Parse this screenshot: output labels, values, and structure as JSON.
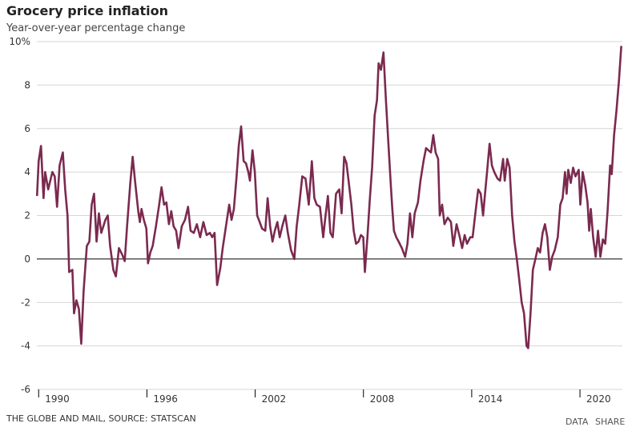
{
  "chart_data": {
    "type": "line",
    "title": "Grocery price inflation",
    "subtitle": "Year-over-year percentage change",
    "source": "THE GLOBE AND MAIL, SOURCE: STATSCAN",
    "buttons": [
      "DATA",
      "SHARE"
    ],
    "x": [
      1989.91,
      1990.0,
      1990.13,
      1990.27,
      1990.36,
      1990.53,
      1990.76,
      1990.89,
      1991.02,
      1991.16,
      1991.34,
      1991.47,
      1991.6,
      1991.69,
      1991.87,
      1991.96,
      1992.09,
      1992.23,
      1992.36,
      1992.49,
      1992.67,
      1992.81,
      1992.94,
      1993.07,
      1993.21,
      1993.34,
      1993.47,
      1993.7,
      1993.83,
      1993.96,
      1994.14,
      1994.28,
      1994.45,
      1994.63,
      1994.77,
      1994.9,
      1995.08,
      1995.21,
      1995.34,
      1995.52,
      1995.61,
      1995.7,
      1995.83,
      1995.97,
      1996.06,
      1996.19,
      1996.32,
      1996.5,
      1996.68,
      1996.81,
      1996.95,
      1997.08,
      1997.22,
      1997.35,
      1997.48,
      1997.62,
      1997.75,
      1997.93,
      1998.11,
      1998.28,
      1998.42,
      1998.6,
      1998.77,
      1998.95,
      1999.13,
      1999.31,
      1999.49,
      1999.62,
      1999.75,
      1999.89,
      2000.07,
      2000.2,
      2000.38,
      2000.56,
      2000.69,
      2000.82,
      2000.96,
      2001.09,
      2001.22,
      2001.36,
      2001.49,
      2001.62,
      2001.71,
      2001.85,
      2001.98,
      2002.11,
      2002.25,
      2002.38,
      2002.56,
      2002.69,
      2002.83,
      2002.96,
      2003.09,
      2003.23,
      2003.36,
      2003.5,
      2003.67,
      2003.81,
      2003.99,
      2004.17,
      2004.3,
      2004.43,
      2004.61,
      2004.79,
      2004.97,
      2005.14,
      2005.28,
      2005.41,
      2005.59,
      2005.77,
      2005.9,
      2006.03,
      2006.17,
      2006.3,
      2006.48,
      2006.66,
      2006.79,
      2006.93,
      2007.06,
      2007.19,
      2007.33,
      2007.46,
      2007.59,
      2007.73,
      2007.86,
      2007.99,
      2008.08,
      2008.22,
      2008.35,
      2008.48,
      2008.62,
      2008.75,
      2008.84,
      2008.97,
      2009.11,
      2009.24,
      2009.37,
      2009.51,
      2009.6,
      2009.69,
      2009.82,
      2009.95,
      2010.13,
      2010.31,
      2010.44,
      2010.58,
      2010.71,
      2010.84,
      2011.02,
      2011.16,
      2011.33,
      2011.47,
      2011.6,
      2011.74,
      2011.87,
      2012.0,
      2012.14,
      2012.23,
      2012.36,
      2012.49,
      2012.67,
      2012.85,
      2012.98,
      2013.16,
      2013.34,
      2013.47,
      2013.61,
      2013.74,
      2013.92,
      2014.05,
      2014.23,
      2014.36,
      2014.5,
      2014.63,
      2014.76,
      2014.85,
      2014.99,
      2015.12,
      2015.25,
      2015.43,
      2015.57,
      2015.74,
      2015.83,
      2015.97,
      2016.1,
      2016.24,
      2016.37,
      2016.5,
      2016.64,
      2016.77,
      2016.9,
      2017.04,
      2017.13,
      2017.26,
      2017.39,
      2017.53,
      2017.66,
      2017.79,
      2017.93,
      2018.06,
      2018.19,
      2018.33,
      2018.46,
      2018.6,
      2018.77,
      2018.91,
      2019.04,
      2019.17,
      2019.26,
      2019.35,
      2019.49,
      2019.62,
      2019.75,
      2019.93,
      2020.02,
      2020.15,
      2020.29,
      2020.42,
      2020.51,
      2020.6,
      2020.73,
      2020.87,
      2021.0,
      2021.13,
      2021.27,
      2021.4,
      2021.53,
      2021.67,
      2021.76,
      2021.89,
      2022.02,
      2022.16,
      2022.29
    ],
    "series": [
      {
        "name": "Grocery price inflation",
        "color": "#7b2a4f",
        "values": [
          2.9,
          4.5,
          5.2,
          2.8,
          4.0,
          3.2,
          4.0,
          3.8,
          2.4,
          4.3,
          4.9,
          3.2,
          2.0,
          -0.6,
          -0.5,
          -2.5,
          -1.9,
          -2.3,
          -3.9,
          -1.5,
          0.6,
          0.8,
          2.5,
          3.0,
          0.8,
          2.1,
          1.2,
          1.8,
          2.0,
          0.6,
          -0.5,
          -0.8,
          0.5,
          0.2,
          -0.1,
          1.5,
          3.5,
          4.7,
          3.6,
          2.2,
          1.7,
          2.3,
          1.8,
          1.4,
          -0.2,
          0.3,
          0.6,
          1.5,
          2.5,
          3.3,
          2.5,
          2.6,
          1.6,
          2.2,
          1.5,
          1.3,
          0.5,
          1.5,
          1.8,
          2.4,
          1.3,
          1.2,
          1.6,
          1.0,
          1.7,
          1.1,
          1.2,
          1.0,
          1.2,
          -1.2,
          -0.4,
          0.5,
          1.5,
          2.5,
          1.8,
          2.3,
          3.7,
          5.2,
          6.1,
          4.5,
          4.4,
          4.0,
          3.6,
          5.0,
          4.0,
          2.0,
          1.7,
          1.4,
          1.3,
          2.8,
          1.5,
          0.8,
          1.3,
          1.7,
          1.0,
          1.5,
          2.0,
          1.2,
          0.4,
          0.0,
          1.5,
          2.4,
          3.8,
          3.7,
          2.5,
          4.5,
          2.8,
          2.5,
          2.4,
          1.0,
          2.0,
          2.9,
          1.2,
          1.0,
          3.0,
          3.2,
          2.1,
          4.7,
          4.4,
          3.5,
          2.5,
          1.3,
          0.7,
          0.8,
          1.1,
          1.0,
          -0.6,
          1.0,
          2.7,
          4.2,
          6.6,
          7.3,
          9.0,
          8.7,
          9.5,
          7.4,
          5.5,
          3.5,
          2.3,
          1.3,
          1.0,
          0.8,
          0.5,
          0.1,
          0.7,
          2.1,
          1.0,
          2.1,
          2.6,
          3.6,
          4.5,
          5.1,
          5.0,
          4.9,
          5.7,
          4.9,
          4.6,
          2.0,
          2.5,
          1.6,
          1.9,
          1.7,
          0.6,
          1.6,
          1.0,
          0.5,
          1.1,
          0.7,
          1.0,
          1.0,
          2.3,
          3.2,
          3.0,
          2.0,
          3.2,
          4.0,
          5.3,
          4.3,
          4.0,
          3.7,
          3.6,
          4.6,
          3.6,
          4.6,
          4.2,
          2.0,
          0.8,
          0.0,
          -1.0,
          -2.0,
          -2.5,
          -4.0,
          -4.1,
          -2.5,
          -0.5,
          0.0,
          0.5,
          0.3,
          1.2,
          1.6,
          1.0,
          -0.5,
          0.1,
          0.4,
          1.0,
          2.5,
          2.8,
          4.0,
          3.0,
          4.1,
          3.5,
          4.2,
          3.8,
          4.1,
          2.5,
          4.0,
          3.4,
          2.6,
          1.3,
          2.3,
          1.0,
          0.1,
          1.3,
          0.1,
          0.9,
          0.7,
          2.2,
          4.3,
          3.9,
          5.7,
          6.8,
          8.2,
          9.8
        ]
      }
    ],
    "xlim": [
      1989.9,
      2022.35
    ],
    "xticks": [
      1990,
      1996,
      2002,
      2008,
      2014,
      2020
    ],
    "ylim": [
      -6,
      10
    ],
    "yticks": [
      -6,
      -4,
      -2,
      0,
      2,
      4,
      6,
      8,
      {
        "value": 10,
        "label": "10%"
      }
    ],
    "grid": true
  }
}
